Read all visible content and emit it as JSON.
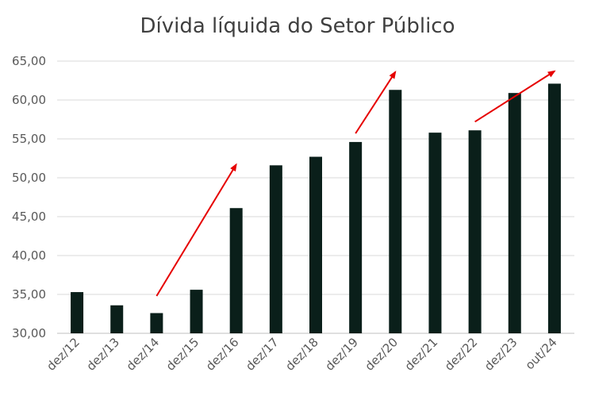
{
  "chart_data": {
    "type": "bar",
    "title": "Dívida líquida do Setor Público",
    "xlabel": "",
    "ylabel": "",
    "ylim": [
      30,
      65
    ],
    "yticks": [
      "30,00",
      "35,00",
      "40,00",
      "45,00",
      "50,00",
      "55,00",
      "60,00",
      "65,00"
    ],
    "grid": true,
    "categories": [
      "dez/12",
      "dez/13",
      "dez/14",
      "dez/15",
      "dez/16",
      "dez/17",
      "dez/18",
      "dez/19",
      "dez/20",
      "dez/21",
      "dez/22",
      "dez/23",
      "out/24"
    ],
    "values": [
      35.3,
      33.6,
      32.6,
      35.6,
      46.1,
      51.6,
      52.7,
      54.6,
      61.3,
      55.8,
      56.1,
      60.9,
      62.1
    ],
    "colors": {
      "bar": "#0a1f1a",
      "arrow": "#e60000",
      "grid": "#d9d9d9",
      "axis": "#bfbfbf"
    },
    "annotations": [
      {
        "type": "arrow",
        "from": {
          "x": "dez/14",
          "y": 34.8
        },
        "to": {
          "x": "dez/16",
          "y": 51.7
        }
      },
      {
        "type": "arrow",
        "from": {
          "x": "dez/19",
          "y": 55.7
        },
        "to": {
          "x": "dez/20",
          "y": 63.6
        }
      },
      {
        "type": "arrow",
        "from": {
          "x": "dez/22",
          "y": 57.2
        },
        "to": {
          "x": "out/24",
          "y": 63.7
        }
      }
    ]
  }
}
